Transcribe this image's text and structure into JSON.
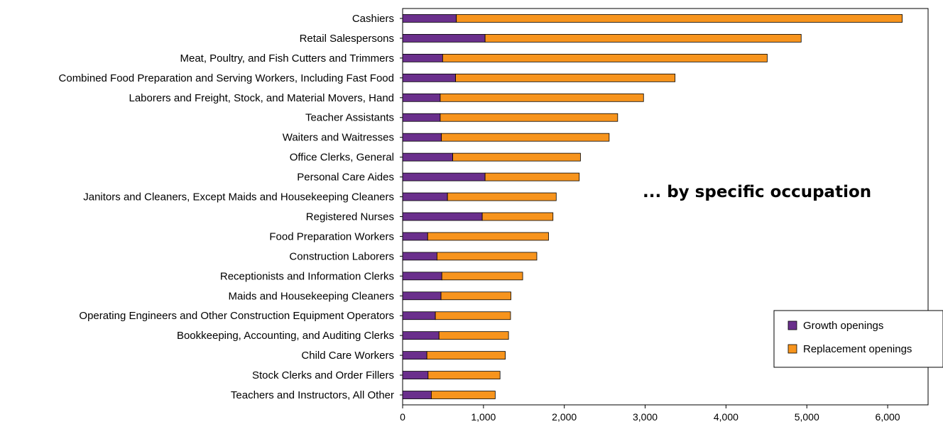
{
  "chart_data": {
    "type": "bar",
    "orientation": "horizontal",
    "stacked": true,
    "annotation": "... by specific occupation",
    "categories": [
      "Cashiers",
      "Retail Salespersons",
      "Meat, Poultry, and Fish Cutters and Trimmers",
      "Combined Food Preparation and Serving Workers, Including Fast Food",
      "Laborers and Freight, Stock, and Material Movers, Hand",
      "Teacher Assistants",
      "Waiters and Waitresses",
      "Office Clerks, General",
      "Personal Care Aides",
      "Janitors and Cleaners, Except Maids and Housekeeping Cleaners",
      "Registered Nurses",
      "Food Preparation Workers",
      "Construction Laborers",
      "Receptionists and Information Clerks",
      "Maids and Housekeeping Cleaners",
      "Operating Engineers and Other Construction Equipment Operators",
      "Bookkeeping, Accounting, and Auditing Clerks",
      "Child Care Workers",
      "Stock Clerks and Order Fillers",
      "Teachers and Instructors, All Other"
    ],
    "series": [
      {
        "name": "Growth openings",
        "color": "#6a2f8c",
        "values": [
          665,
          1020,
          495,
          655,
          465,
          465,
          480,
          620,
          1020,
          555,
          985,
          310,
          425,
          485,
          475,
          405,
          450,
          300,
          315,
          355
        ]
      },
      {
        "name": "Replacement openings",
        "color": "#f7941d",
        "values": [
          5515,
          3910,
          4015,
          2715,
          2515,
          2195,
          2075,
          1580,
          1165,
          1345,
          875,
          1495,
          1235,
          1000,
          865,
          930,
          860,
          970,
          890,
          790
        ]
      }
    ],
    "xlim": [
      0,
      6500
    ],
    "xticks": [
      "0",
      "1,000",
      "2,000",
      "3,000",
      "4,000",
      "5,000",
      "6,000"
    ],
    "grid": false,
    "legend_position": "bottom-right"
  }
}
